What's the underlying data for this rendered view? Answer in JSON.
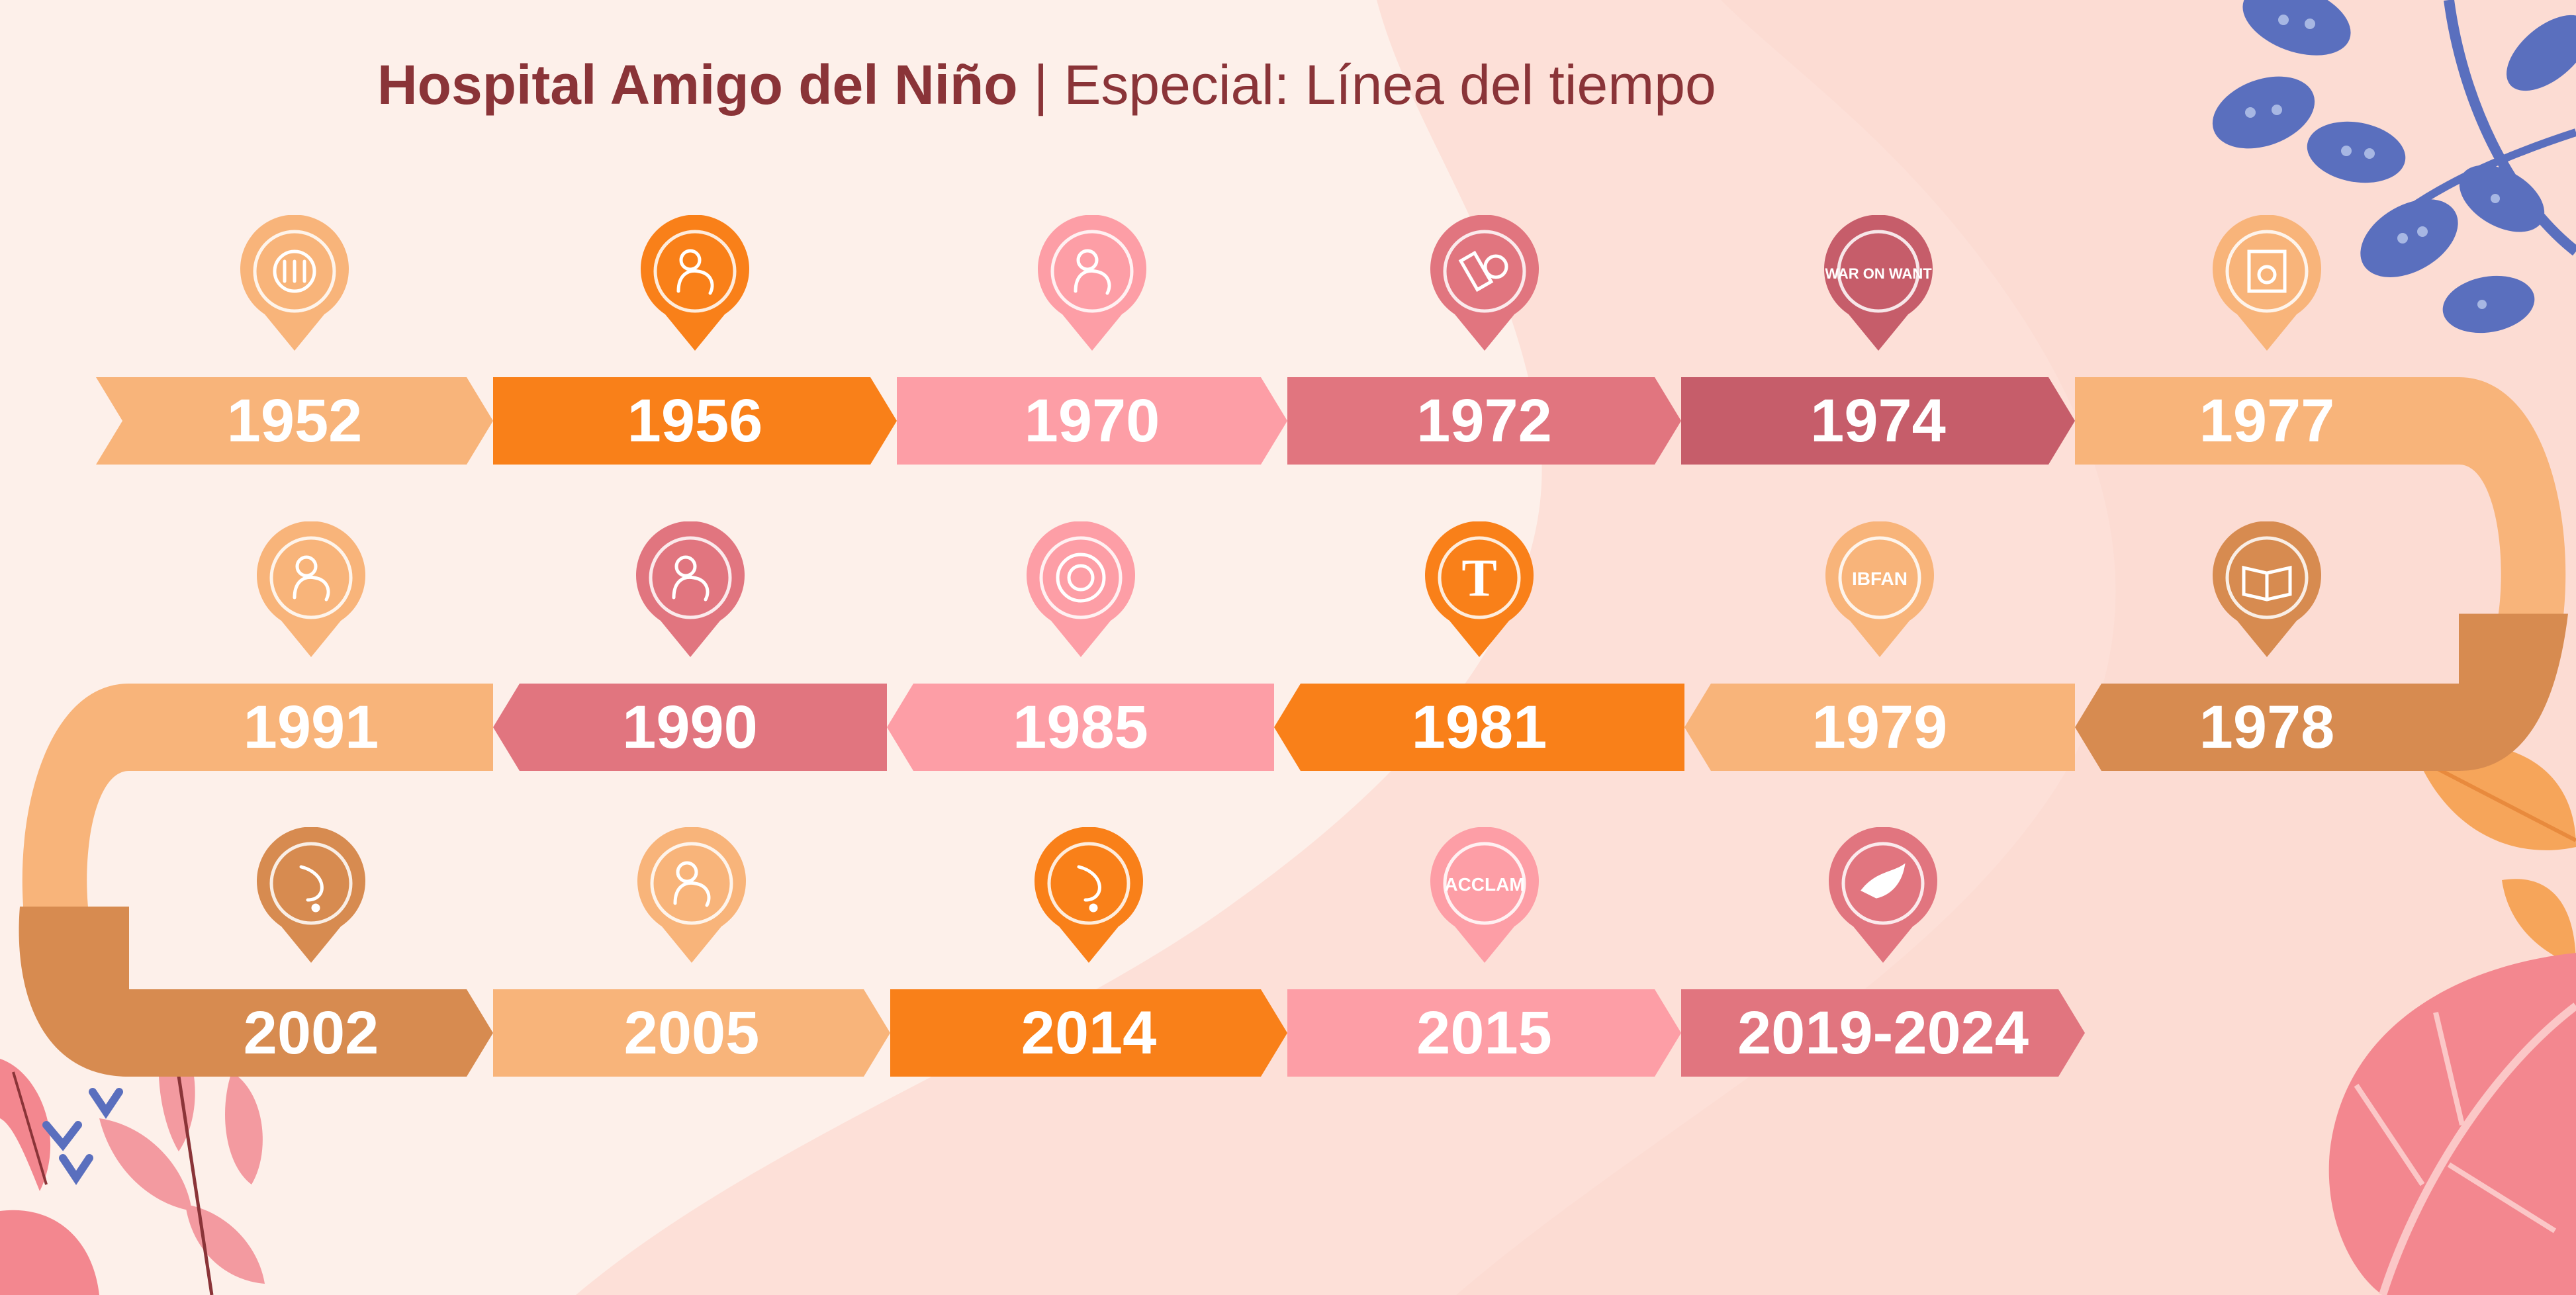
{
  "header": {
    "brand": "Hospital Amigo del Niño",
    "separator": "|",
    "subtitle": "Especial: Línea del tiempo"
  },
  "colors": {
    "background": "#fdf0ea",
    "title": "#8a3438",
    "light_orange": "#f8b47a",
    "orange": "#f98019",
    "pink": "#fd9ea6",
    "rose": "#e1757f",
    "dark_rose": "#c65d6a",
    "tan": "#d78b50"
  },
  "milestones": [
    {
      "year": "1952",
      "color": "#f8b47a",
      "icon": "oit-logo-icon"
    },
    {
      "year": "1956",
      "color": "#f98019",
      "icon": "mother-child-icon"
    },
    {
      "year": "1970",
      "color": "#fd9ea6",
      "icon": "woman-breastfeeding-icon"
    },
    {
      "year": "1972",
      "color": "#e1757f",
      "icon": "baby-bottle-money-icon"
    },
    {
      "year": "1974",
      "color": "#c65d6a",
      "icon": "war-on-want-icon",
      "icon_text": "WAR ON WANT"
    },
    {
      "year": "1977",
      "color": "#f8b47a",
      "icon": "framed-picture-icon"
    },
    {
      "year": "1978",
      "color": "#d78b50",
      "icon": "open-book-icon"
    },
    {
      "year": "1979",
      "color": "#f8b47a",
      "icon": "ibfan-logo-icon",
      "icon_text": "IBFAN"
    },
    {
      "year": "1981",
      "color": "#f98019",
      "icon": "newspaper-logo-icon"
    },
    {
      "year": "1985",
      "color": "#fd9ea6",
      "icon": "circle-logo-icon"
    },
    {
      "year": "1990",
      "color": "#e1757f",
      "icon": "mother-baby-icon"
    },
    {
      "year": "1991",
      "color": "#f8b47a",
      "icon": "mother-baby-hug-icon"
    },
    {
      "year": "2002",
      "color": "#d78b50",
      "icon": "breast-drop-icon"
    },
    {
      "year": "2005",
      "color": "#f8b47a",
      "icon": "mother-baby-icon"
    },
    {
      "year": "2014",
      "color": "#f98019",
      "icon": "breast-drop-icon"
    },
    {
      "year": "2015",
      "color": "#fd9ea6",
      "icon": "acclam-logo-icon",
      "icon_text": "ACCLAM"
    },
    {
      "year": "2019-2024",
      "color": "#e1757f",
      "icon": "dove-icon"
    }
  ]
}
